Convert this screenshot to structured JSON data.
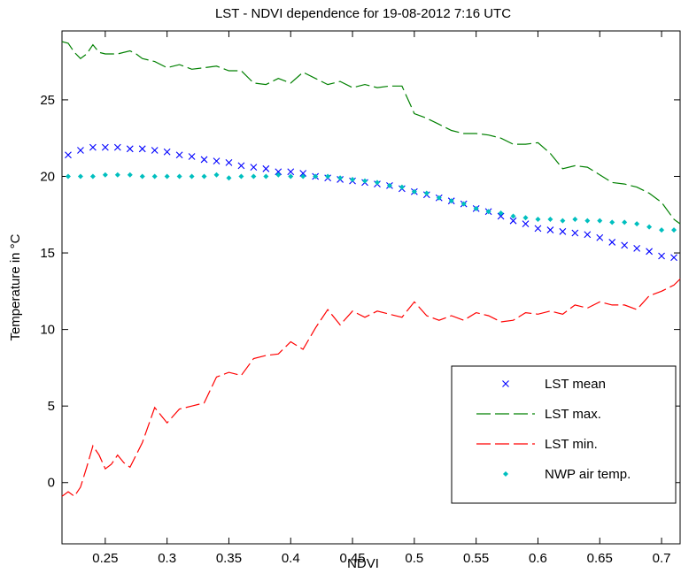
{
  "chart_data": {
    "type": "line",
    "title": "LST - NDVI dependence for 19-08-2012 7:16 UTC",
    "xlabel": "NDVI",
    "ylabel": "Temperature in °C",
    "xlim": [
      0.215,
      0.715
    ],
    "ylim": [
      -4,
      29.5
    ],
    "xticks": [
      0.25,
      0.3,
      0.35,
      0.4,
      0.45,
      0.5,
      0.55,
      0.6,
      0.65,
      0.7
    ],
    "xtick_labels": [
      "0.25",
      "0.3",
      "0.35",
      "0.4",
      "0.45",
      "0.5",
      "0.55",
      "0.6",
      "0.65",
      "0.7"
    ],
    "yticks": [
      0,
      5,
      10,
      15,
      20,
      25
    ],
    "ytick_labels": [
      "0",
      "5",
      "10",
      "15",
      "20",
      "25"
    ],
    "grid": false,
    "legend_position": "bottom-right",
    "series": [
      {
        "name": "LST mean",
        "style": "x-markers",
        "color": "#0000ff",
        "x": [
          0.22,
          0.23,
          0.24,
          0.25,
          0.26,
          0.27,
          0.28,
          0.29,
          0.3,
          0.31,
          0.32,
          0.33,
          0.34,
          0.35,
          0.36,
          0.37,
          0.38,
          0.39,
          0.4,
          0.41,
          0.42,
          0.43,
          0.44,
          0.45,
          0.46,
          0.47,
          0.48,
          0.49,
          0.5,
          0.51,
          0.52,
          0.53,
          0.54,
          0.55,
          0.56,
          0.57,
          0.58,
          0.59,
          0.6,
          0.61,
          0.62,
          0.63,
          0.64,
          0.65,
          0.66,
          0.67,
          0.68,
          0.69,
          0.7,
          0.71
        ],
        "y": [
          21.4,
          21.7,
          21.9,
          21.9,
          21.9,
          21.8,
          21.8,
          21.7,
          21.6,
          21.4,
          21.3,
          21.1,
          21.0,
          20.9,
          20.7,
          20.6,
          20.5,
          20.3,
          20.3,
          20.2,
          20.0,
          19.9,
          19.8,
          19.7,
          19.6,
          19.5,
          19.4,
          19.2,
          19.0,
          18.8,
          18.6,
          18.4,
          18.2,
          17.9,
          17.7,
          17.4,
          17.1,
          16.9,
          16.6,
          16.5,
          16.4,
          16.3,
          16.2,
          16.0,
          15.7,
          15.5,
          15.3,
          15.1,
          14.8,
          14.7
        ]
      },
      {
        "name": "LST max.",
        "style": "dashed",
        "color": "#008000",
        "x": [
          0.215,
          0.22,
          0.225,
          0.23,
          0.235,
          0.24,
          0.245,
          0.25,
          0.26,
          0.27,
          0.275,
          0.28,
          0.29,
          0.3,
          0.31,
          0.32,
          0.33,
          0.34,
          0.35,
          0.36,
          0.37,
          0.38,
          0.39,
          0.4,
          0.41,
          0.42,
          0.43,
          0.44,
          0.45,
          0.46,
          0.47,
          0.48,
          0.49,
          0.5,
          0.51,
          0.52,
          0.53,
          0.54,
          0.55,
          0.56,
          0.57,
          0.58,
          0.59,
          0.6,
          0.61,
          0.62,
          0.63,
          0.64,
          0.65,
          0.66,
          0.67,
          0.68,
          0.69,
          0.7,
          0.71,
          0.715
        ],
        "y": [
          28.8,
          28.7,
          28.1,
          27.7,
          28.0,
          28.6,
          28.1,
          28.0,
          28.0,
          28.2,
          28.0,
          27.7,
          27.5,
          27.1,
          27.3,
          27.0,
          27.1,
          27.2,
          26.9,
          26.9,
          26.1,
          26.0,
          26.4,
          26.1,
          26.8,
          26.4,
          26.0,
          26.2,
          25.8,
          26.0,
          25.8,
          25.9,
          25.9,
          24.1,
          23.8,
          23.4,
          23.0,
          22.8,
          22.8,
          22.7,
          22.5,
          22.1,
          22.1,
          22.2,
          21.5,
          20.5,
          20.7,
          20.6,
          20.1,
          19.6,
          19.5,
          19.3,
          18.9,
          18.3,
          17.2,
          16.9
        ]
      },
      {
        "name": "LST min.",
        "style": "dashed",
        "color": "#ff0000",
        "x": [
          0.215,
          0.22,
          0.225,
          0.23,
          0.235,
          0.24,
          0.245,
          0.25,
          0.255,
          0.26,
          0.265,
          0.27,
          0.28,
          0.29,
          0.295,
          0.3,
          0.31,
          0.32,
          0.33,
          0.34,
          0.35,
          0.36,
          0.37,
          0.38,
          0.39,
          0.4,
          0.41,
          0.42,
          0.43,
          0.44,
          0.45,
          0.46,
          0.47,
          0.48,
          0.49,
          0.5,
          0.51,
          0.52,
          0.53,
          0.54,
          0.55,
          0.56,
          0.57,
          0.58,
          0.59,
          0.6,
          0.61,
          0.62,
          0.63,
          0.64,
          0.65,
          0.66,
          0.67,
          0.68,
          0.69,
          0.7,
          0.71,
          0.715
        ],
        "y": [
          -0.9,
          -0.6,
          -0.9,
          -0.3,
          1.0,
          2.4,
          1.8,
          0.9,
          1.2,
          1.8,
          1.3,
          1.0,
          2.6,
          4.9,
          4.4,
          3.9,
          4.8,
          5.0,
          5.2,
          6.9,
          7.2,
          7.0,
          8.1,
          8.3,
          8.4,
          9.2,
          8.7,
          10.1,
          11.3,
          10.3,
          11.2,
          10.8,
          11.2,
          11.0,
          10.8,
          11.8,
          10.9,
          10.6,
          10.9,
          10.6,
          11.1,
          10.9,
          10.5,
          10.6,
          11.1,
          11.0,
          11.2,
          11.0,
          11.6,
          11.4,
          11.8,
          11.6,
          11.6,
          11.3,
          12.2,
          12.5,
          12.9,
          13.3
        ]
      },
      {
        "name": "NWP air temp.",
        "style": "dot-markers",
        "color": "#00bfbf",
        "x": [
          0.22,
          0.23,
          0.24,
          0.25,
          0.26,
          0.27,
          0.28,
          0.29,
          0.3,
          0.31,
          0.32,
          0.33,
          0.34,
          0.35,
          0.36,
          0.37,
          0.38,
          0.39,
          0.4,
          0.41,
          0.42,
          0.43,
          0.44,
          0.45,
          0.46,
          0.47,
          0.48,
          0.49,
          0.5,
          0.51,
          0.52,
          0.53,
          0.54,
          0.55,
          0.56,
          0.57,
          0.58,
          0.59,
          0.6,
          0.61,
          0.62,
          0.63,
          0.64,
          0.65,
          0.66,
          0.67,
          0.68,
          0.69,
          0.7,
          0.71
        ],
        "y": [
          20.0,
          20.0,
          20.0,
          20.1,
          20.1,
          20.1,
          20.0,
          20.0,
          20.0,
          20.0,
          20.0,
          20.0,
          20.1,
          19.9,
          20.0,
          20.0,
          20.0,
          20.1,
          20.0,
          20.0,
          20.0,
          20.0,
          19.9,
          19.8,
          19.7,
          19.6,
          19.4,
          19.3,
          19.0,
          18.9,
          18.6,
          18.4,
          18.2,
          17.9,
          17.7,
          17.6,
          17.4,
          17.3,
          17.2,
          17.2,
          17.1,
          17.2,
          17.1,
          17.1,
          17.0,
          17.0,
          16.9,
          16.7,
          16.5,
          16.5
        ]
      }
    ]
  }
}
